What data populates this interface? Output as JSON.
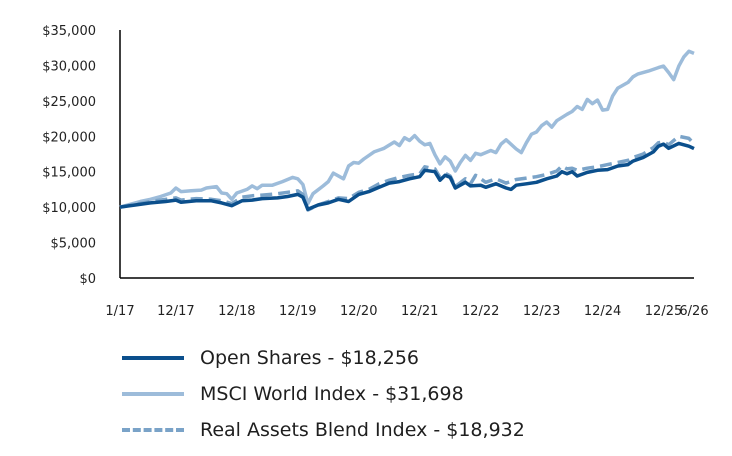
{
  "chart_data": {
    "type": "line",
    "title": "",
    "xlabel": "",
    "ylabel": "",
    "ylim": [
      0,
      35000
    ],
    "yticks": [
      "$0",
      "$5,000",
      "$10,000",
      "$15,000",
      "$20,000",
      "$25,000",
      "$30,000",
      "$35,000"
    ],
    "ytick_values": [
      0,
      5000,
      10000,
      15000,
      20000,
      25000,
      30000,
      35000
    ],
    "xlim": [
      0,
      113
    ],
    "xticks": [
      "1/17",
      "12/17",
      "12/18",
      "12/19",
      "12/20",
      "12/21",
      "12/22",
      "12/23",
      "12/24",
      "12/25",
      "6/26"
    ],
    "xtick_values": [
      0,
      11,
      23,
      35,
      47,
      59,
      71,
      83,
      95,
      107,
      113
    ],
    "series": [
      {
        "name": "Open Shares - $18,256",
        "color": "#0b4f8c",
        "dash": "solid",
        "points": [
          [
            0,
            10000
          ],
          [
            3,
            10300
          ],
          [
            6,
            10600
          ],
          [
            9,
            10800
          ],
          [
            11,
            11000
          ],
          [
            12,
            10700
          ],
          [
            15,
            10900
          ],
          [
            18,
            10900
          ],
          [
            20,
            10600
          ],
          [
            22,
            10200
          ],
          [
            24,
            10900
          ],
          [
            26,
            11000
          ],
          [
            28,
            11200
          ],
          [
            31,
            11300
          ],
          [
            33,
            11500
          ],
          [
            35,
            11800
          ],
          [
            36,
            11400
          ],
          [
            37,
            9700
          ],
          [
            39,
            10300
          ],
          [
            41,
            10600
          ],
          [
            43,
            11100
          ],
          [
            45,
            10800
          ],
          [
            47,
            11800
          ],
          [
            49,
            12200
          ],
          [
            51,
            12800
          ],
          [
            53,
            13400
          ],
          [
            55,
            13600
          ],
          [
            57,
            14000
          ],
          [
            59,
            14300
          ],
          [
            60,
            15200
          ],
          [
            62,
            15000
          ],
          [
            63,
            13800
          ],
          [
            64,
            14500
          ],
          [
            65,
            14200
          ],
          [
            66,
            12700
          ],
          [
            68,
            13500
          ],
          [
            69,
            13000
          ],
          [
            71,
            13100
          ],
          [
            72,
            12800
          ],
          [
            74,
            13300
          ],
          [
            76,
            12700
          ],
          [
            77,
            12500
          ],
          [
            78,
            13100
          ],
          [
            80,
            13300
          ],
          [
            82,
            13500
          ],
          [
            84,
            14000
          ],
          [
            86,
            14400
          ],
          [
            87,
            15000
          ],
          [
            88,
            14700
          ],
          [
            89,
            15000
          ],
          [
            90,
            14400
          ],
          [
            92,
            14900
          ],
          [
            94,
            15200
          ],
          [
            96,
            15300
          ],
          [
            98,
            15800
          ],
          [
            100,
            16000
          ],
          [
            101,
            16500
          ],
          [
            103,
            17000
          ],
          [
            105,
            17800
          ],
          [
            106,
            18600
          ],
          [
            107,
            18900
          ],
          [
            108,
            18300
          ],
          [
            110,
            19000
          ],
          [
            112,
            18600
          ],
          [
            113,
            18256
          ]
        ]
      },
      {
        "name": "MSCI World Index - $31,698",
        "color": "#9dbcda",
        "dash": "solid",
        "points": [
          [
            0,
            10000
          ],
          [
            2,
            10400
          ],
          [
            4,
            10800
          ],
          [
            6,
            11100
          ],
          [
            8,
            11500
          ],
          [
            10,
            12000
          ],
          [
            11,
            12700
          ],
          [
            12,
            12200
          ],
          [
            14,
            12300
          ],
          [
            16,
            12400
          ],
          [
            17,
            12700
          ],
          [
            19,
            12900
          ],
          [
            20,
            12000
          ],
          [
            21,
            11900
          ],
          [
            22,
            11100
          ],
          [
            23,
            12000
          ],
          [
            25,
            12500
          ],
          [
            26,
            13000
          ],
          [
            27,
            12600
          ],
          [
            28,
            13100
          ],
          [
            30,
            13100
          ],
          [
            32,
            13600
          ],
          [
            34,
            14200
          ],
          [
            35,
            14000
          ],
          [
            36,
            13200
          ],
          [
            37,
            10500
          ],
          [
            38,
            11900
          ],
          [
            40,
            13000
          ],
          [
            41,
            13600
          ],
          [
            42,
            14800
          ],
          [
            44,
            14000
          ],
          [
            45,
            15800
          ],
          [
            46,
            16300
          ],
          [
            47,
            16200
          ],
          [
            48,
            16800
          ],
          [
            50,
            17800
          ],
          [
            52,
            18300
          ],
          [
            54,
            19200
          ],
          [
            55,
            18700
          ],
          [
            56,
            19800
          ],
          [
            57,
            19400
          ],
          [
            58,
            20100
          ],
          [
            59,
            19300
          ],
          [
            60,
            18800
          ],
          [
            61,
            19000
          ],
          [
            62,
            17400
          ],
          [
            63,
            16100
          ],
          [
            64,
            17100
          ],
          [
            65,
            16500
          ],
          [
            66,
            15100
          ],
          [
            67,
            16300
          ],
          [
            68,
            17300
          ],
          [
            69,
            16600
          ],
          [
            70,
            17600
          ],
          [
            71,
            17400
          ],
          [
            73,
            18000
          ],
          [
            74,
            17700
          ],
          [
            75,
            18900
          ],
          [
            76,
            19500
          ],
          [
            78,
            18200
          ],
          [
            79,
            17700
          ],
          [
            80,
            19100
          ],
          [
            81,
            20300
          ],
          [
            82,
            20600
          ],
          [
            83,
            21500
          ],
          [
            84,
            22000
          ],
          [
            85,
            21300
          ],
          [
            86,
            22200
          ],
          [
            88,
            23100
          ],
          [
            89,
            23500
          ],
          [
            90,
            24200
          ],
          [
            91,
            23800
          ],
          [
            92,
            25200
          ],
          [
            93,
            24600
          ],
          [
            94,
            25100
          ],
          [
            95,
            23700
          ],
          [
            96,
            23800
          ],
          [
            97,
            25700
          ],
          [
            98,
            26800
          ],
          [
            100,
            27600
          ],
          [
            101,
            28400
          ],
          [
            102,
            28800
          ],
          [
            104,
            29200
          ],
          [
            106,
            29700
          ],
          [
            107,
            29900
          ],
          [
            108,
            29000
          ],
          [
            109,
            28000
          ],
          [
            110,
            29900
          ],
          [
            111,
            31200
          ],
          [
            112,
            32000
          ],
          [
            113,
            31698
          ]
        ]
      },
      {
        "name": "Real Assets Blend Index - $18,932",
        "color": "#7aa3c8",
        "dash": "dashed",
        "points": [
          [
            0,
            10000
          ],
          [
            3,
            10400
          ],
          [
            6,
            10800
          ],
          [
            9,
            11100
          ],
          [
            11,
            11300
          ],
          [
            12,
            11000
          ],
          [
            15,
            11200
          ],
          [
            18,
            11100
          ],
          [
            20,
            10900
          ],
          [
            22,
            10500
          ],
          [
            24,
            11400
          ],
          [
            26,
            11600
          ],
          [
            28,
            11700
          ],
          [
            31,
            11900
          ],
          [
            33,
            12100
          ],
          [
            35,
            12300
          ],
          [
            36,
            11800
          ],
          [
            37,
            9600
          ],
          [
            39,
            10300
          ],
          [
            41,
            10800
          ],
          [
            43,
            11300
          ],
          [
            45,
            11200
          ],
          [
            47,
            12100
          ],
          [
            49,
            12500
          ],
          [
            51,
            13300
          ],
          [
            53,
            13800
          ],
          [
            55,
            14200
          ],
          [
            57,
            14500
          ],
          [
            59,
            14700
          ],
          [
            60,
            15700
          ],
          [
            62,
            15400
          ],
          [
            63,
            14200
          ],
          [
            64,
            14800
          ],
          [
            65,
            14400
          ],
          [
            66,
            12900
          ],
          [
            68,
            14000
          ],
          [
            69,
            13300
          ],
          [
            70,
            14500
          ],
          [
            71,
            14000
          ],
          [
            72,
            13500
          ],
          [
            74,
            14000
          ],
          [
            76,
            13400
          ],
          [
            78,
            13900
          ],
          [
            80,
            14100
          ],
          [
            82,
            14300
          ],
          [
            84,
            14600
          ],
          [
            86,
            15100
          ],
          [
            87,
            15800
          ],
          [
            88,
            15400
          ],
          [
            89,
            15500
          ],
          [
            90,
            15200
          ],
          [
            92,
            15500
          ],
          [
            94,
            15700
          ],
          [
            96,
            16000
          ],
          [
            98,
            16300
          ],
          [
            100,
            16600
          ],
          [
            101,
            17000
          ],
          [
            103,
            17500
          ],
          [
            105,
            18400
          ],
          [
            106,
            19100
          ],
          [
            107,
            19200
          ],
          [
            108,
            18800
          ],
          [
            110,
            20000
          ],
          [
            112,
            19700
          ],
          [
            113,
            18932
          ]
        ]
      }
    ],
    "legend_placement": "bottom-left",
    "grid": false
  }
}
